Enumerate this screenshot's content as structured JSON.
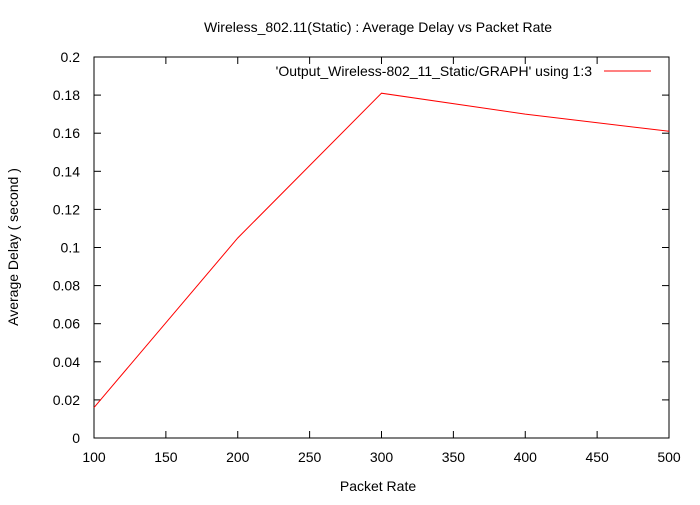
{
  "chart_data": {
    "type": "line",
    "title": "Wireless_802.11(Static) : Average Delay vs Packet Rate",
    "xlabel": "Packet Rate",
    "ylabel": "Average Delay ( second )",
    "xlim": [
      100,
      500
    ],
    "ylim": [
      0,
      0.2
    ],
    "x_ticks": [
      100,
      150,
      200,
      250,
      300,
      350,
      400,
      450,
      500
    ],
    "y_ticks": [
      "0",
      "0.02",
      "0.04",
      "0.06",
      "0.08",
      "0.1",
      "0.12",
      "0.14",
      "0.16",
      "0.18",
      "0.2"
    ],
    "grid": false,
    "legend_position": "top-right",
    "series": [
      {
        "name": "'Output_Wireless-802_11_Static/GRAPH' using 1:3",
        "color": "#ff0000",
        "x": [
          100,
          200,
          300,
          400,
          500
        ],
        "y": [
          0.016,
          0.105,
          0.181,
          0.17,
          0.161
        ]
      }
    ]
  }
}
